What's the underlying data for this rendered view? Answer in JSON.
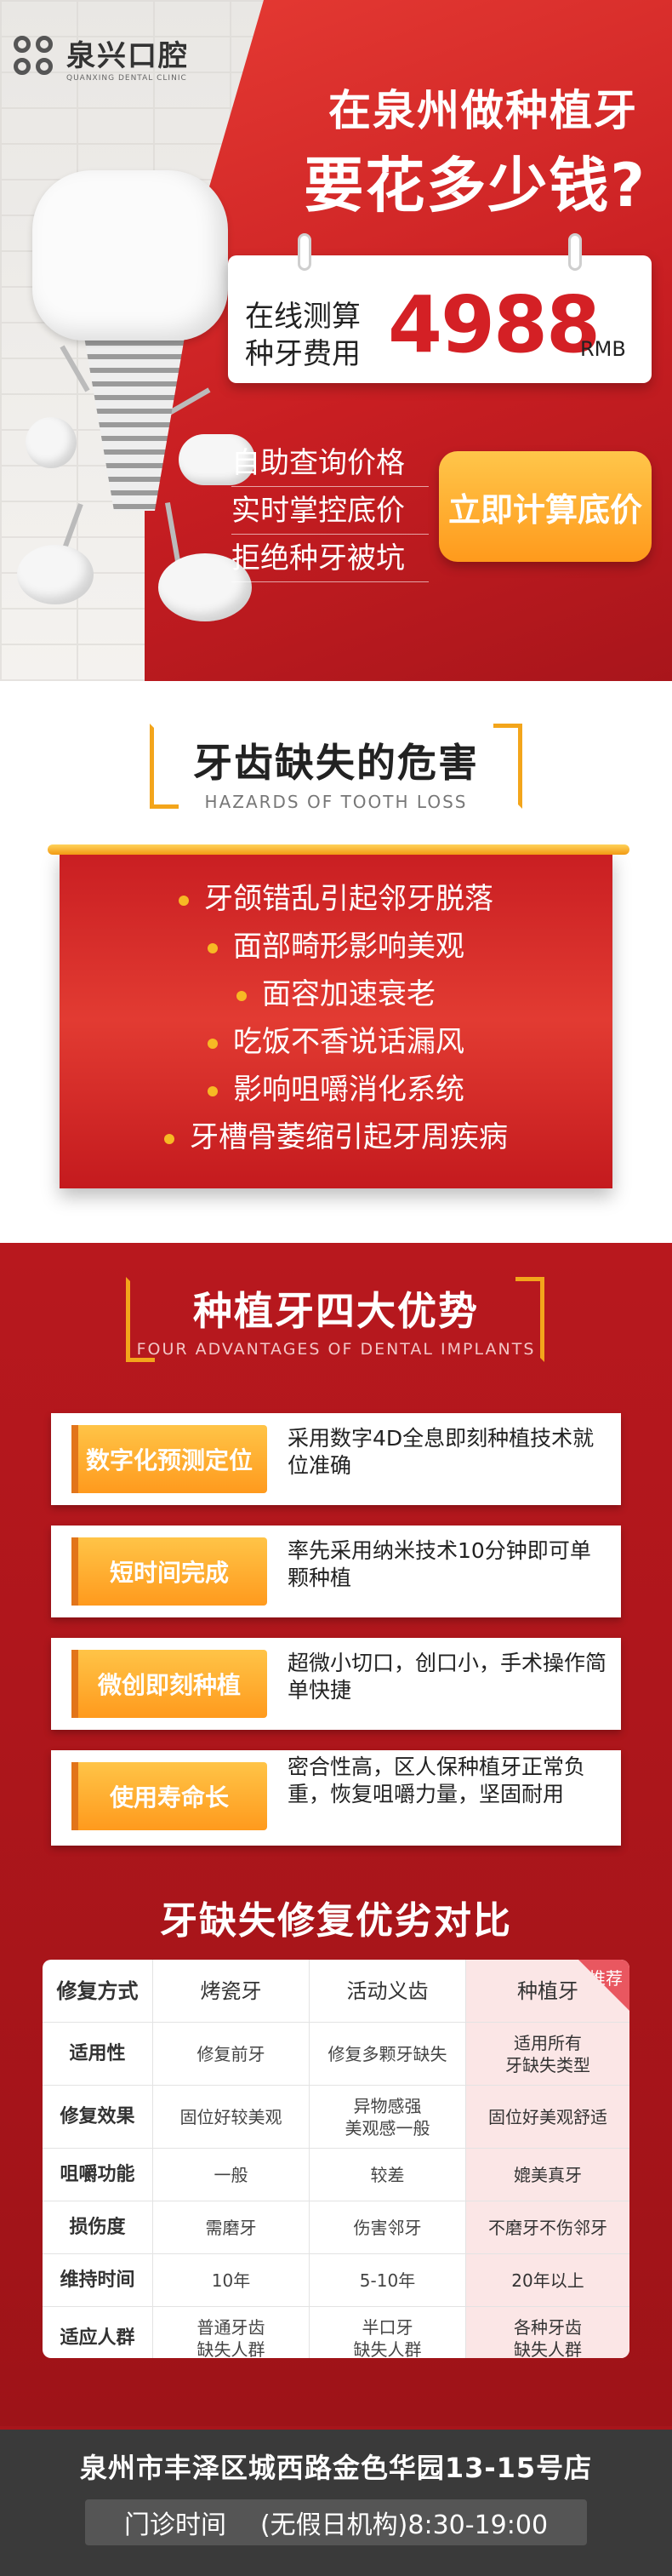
{
  "brand": {
    "name_cn": "泉兴口腔",
    "name_en": "QUANXING DENTAL CLINIC"
  },
  "hero": {
    "title_line1": "在泉州做种植牙",
    "title_line2": "要花多少钱?",
    "price_label_line1": "在线测算",
    "price_label_line2": "种牙费用",
    "price": "4988",
    "price_unit": "RMB",
    "features": [
      "自助查询价格",
      "实时掌控底价",
      "拒绝种牙被坑"
    ],
    "cta_label": "立即计算底价"
  },
  "hazards": {
    "title": "牙齿缺失的危害",
    "subtitle": "HAZARDS OF TOOTH LOSS",
    "items": [
      "牙颌错乱引起邻牙脱落",
      "面部畸形影响美观",
      "面容加速衰老",
      "吃饭不香说话漏风",
      "影响咀嚼消化系统",
      "牙槽骨萎缩引起牙周疾病"
    ]
  },
  "advantages": {
    "title": "种植牙四大优势",
    "subtitle": "FOUR ADVANTAGES OF DENTAL IMPLANTS",
    "items": [
      {
        "tag": "数字化预测定位",
        "desc": "采用数字4D全息即刻种植技术就位准确"
      },
      {
        "tag": "短时间完成",
        "desc": "率先采用纳米技术10分钟即可单颗种植"
      },
      {
        "tag": "微创即刻种植",
        "desc": "超微小切口，创口小，手术操作简单快捷"
      },
      {
        "tag": "使用寿命长",
        "desc": "密合性高，区人保种植牙正常负重，恢复咀嚼力量，坚固耐用"
      }
    ]
  },
  "comparison": {
    "title": "牙缺失修复优劣对比",
    "badge": "推荐",
    "header": [
      "修复方式",
      "烤瓷牙",
      "活动义齿",
      "种植牙"
    ],
    "rows": [
      [
        "适用性",
        "修复前牙",
        "修复多颗牙缺失",
        "适用所有\n牙缺失类型"
      ],
      [
        "修复效果",
        "固位好较美观",
        "异物感强\n美观感一般",
        "固位好美观舒适"
      ],
      [
        "咀嚼功能",
        "一般",
        "较差",
        "媲美真牙"
      ],
      [
        "损伤度",
        "需磨牙",
        "伤害邻牙",
        "不磨牙不伤邻牙"
      ],
      [
        "维持时间",
        "10年",
        "5-10年",
        "20年以上"
      ],
      [
        "适应人群",
        "普通牙齿\n缺失人群",
        "半口牙\n缺失人群",
        "各种牙齿\n缺失人群"
      ]
    ]
  },
  "footer": {
    "address": "泉州市丰泽区城西路金色华园13-15号店",
    "hours_label": "门诊时间",
    "hours_value": "(无假日机构)8:30-19:00"
  },
  "colors": {
    "primary_red": "#c81e22",
    "accent_orange": "#ff9a1c",
    "dark": "#3a3a3a"
  }
}
